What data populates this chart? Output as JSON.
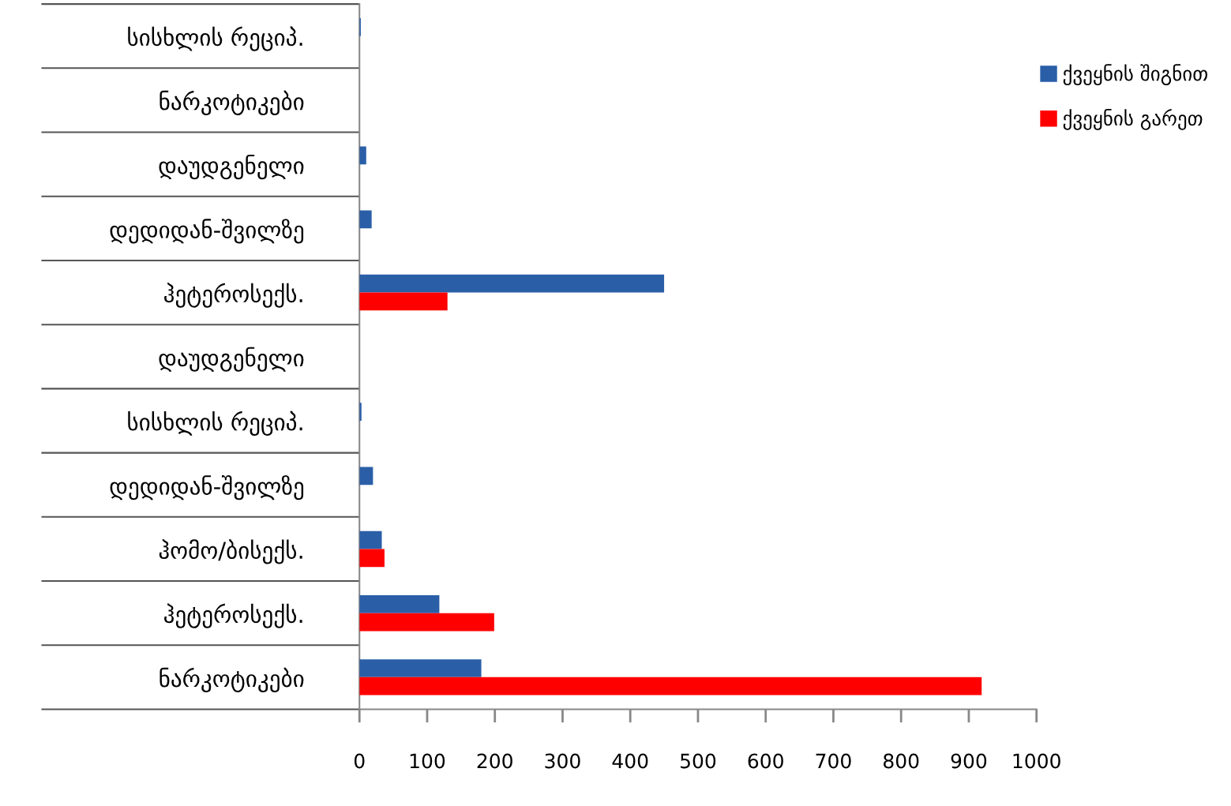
{
  "chart_data": {
    "type": "bar",
    "orientation": "horizontal",
    "categories": [
      "სისხლის რეციპ.",
      "ნარკოტიკები",
      "დაუდგენელი",
      "დედიდან-შვილზე",
      "ჰეტეროსექს.",
      "დაუდგენელი",
      "სისხლის რეციპ.",
      "დედიდან-შვილზე",
      "ჰომო/ბისექს.",
      "ჰეტეროსექს.",
      "ნარკოტიკები"
    ],
    "series": [
      {
        "name": "ქვეყნის შიგნით",
        "color": "#2a5fa8",
        "values": [
          2,
          null,
          10,
          18,
          450,
          null,
          3,
          20,
          33,
          118,
          180
        ]
      },
      {
        "name": "ქვეყნის გარეთ",
        "color": "#ff0000",
        "values": [
          null,
          null,
          null,
          null,
          130,
          null,
          null,
          null,
          37,
          199,
          919
        ]
      }
    ],
    "xlim": [
      0,
      1000
    ],
    "xticks": [
      0,
      100,
      200,
      300,
      400,
      500,
      600,
      700,
      800,
      900,
      1000
    ],
    "grid": false,
    "legend": "top right"
  }
}
